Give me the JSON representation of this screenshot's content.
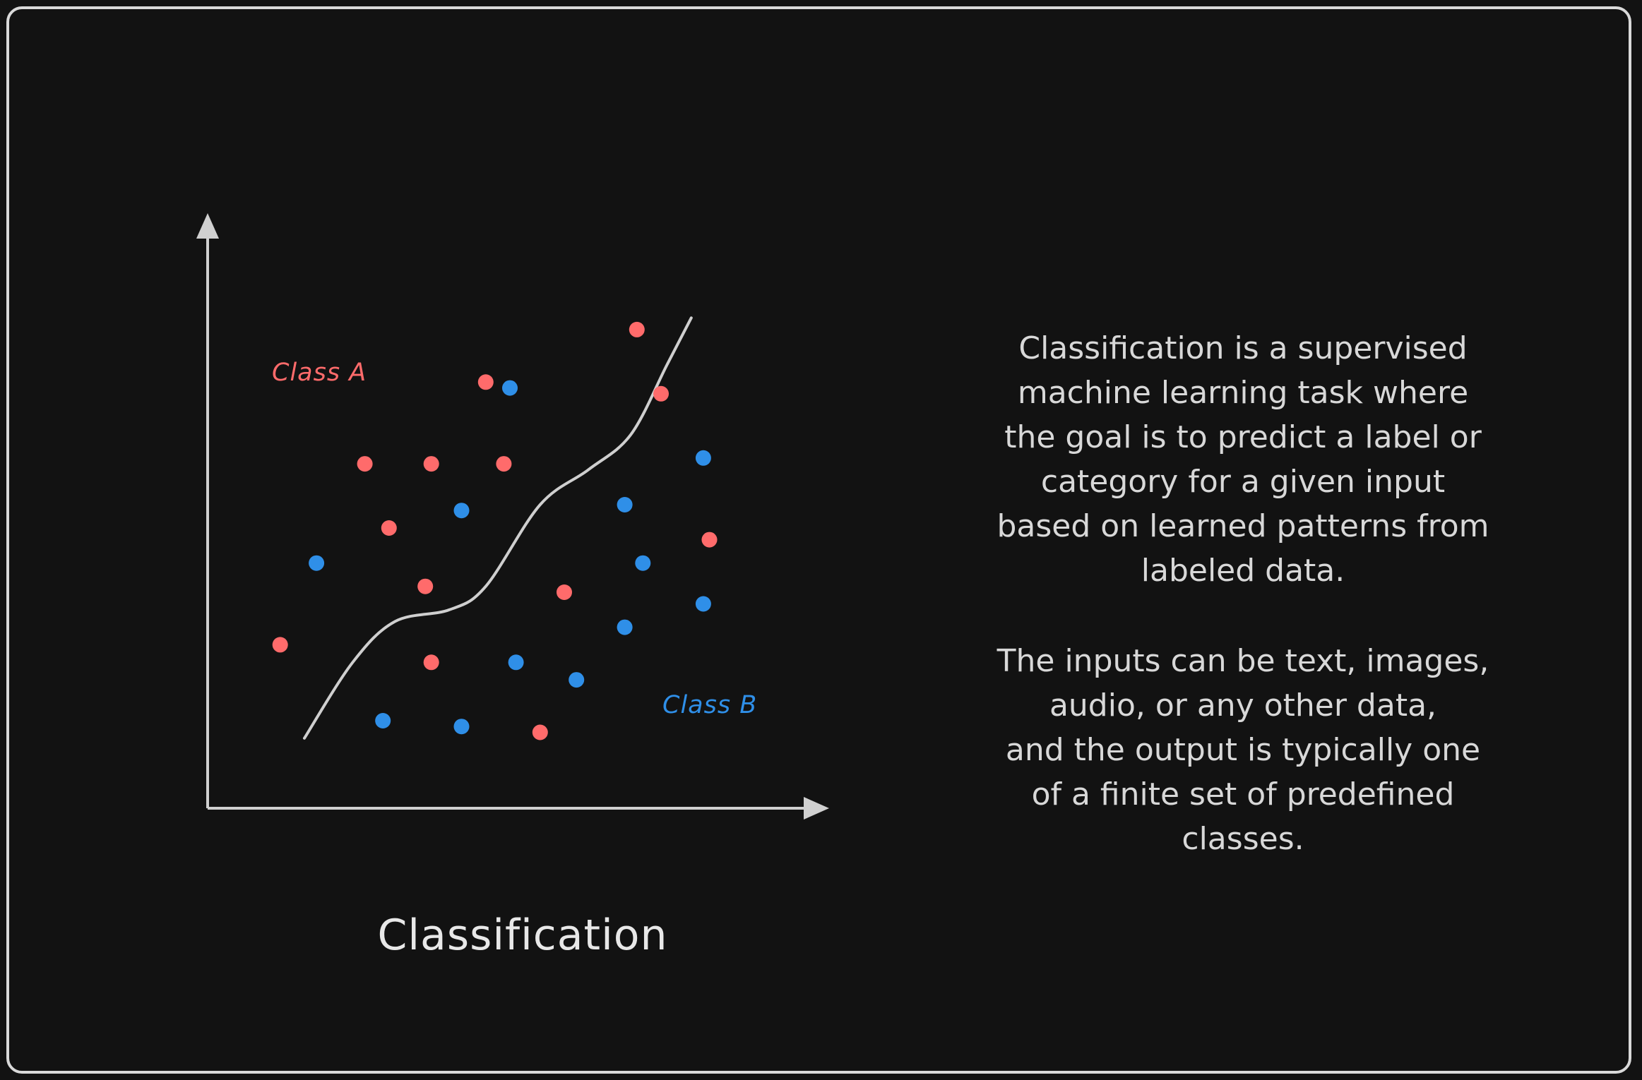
{
  "caption": "Classification",
  "class_labels": {
    "class_a": "Class A",
    "class_b": "Class B"
  },
  "description": {
    "paragraph_1": [
      "Classification is a supervised",
      "machine learning task where",
      "the goal is to predict a label or",
      "category for a given input",
      "based on learned patterns from",
      "labeled data."
    ],
    "paragraph_2": [
      "The inputs can be text, images,",
      "audio, or any other data,",
      "and the output is typically one",
      "of a finite set of predefined",
      "classes."
    ]
  },
  "colors": {
    "background": "#121212",
    "frame": "#d9d9d9",
    "axis": "#d0d0d0",
    "boundary": "#cfcfcf",
    "class_a": "#ff6b6b",
    "class_b": "#2f8fe8",
    "text": "#d8d8d8"
  },
  "chart_data": {
    "type": "scatter",
    "title": "",
    "xlabel": "",
    "ylabel": "",
    "grid": false,
    "series": [
      {
        "name": "Class A",
        "color": "#ff6b6b",
        "points": [
          [
            7.1,
            8.2
          ],
          [
            4.6,
            7.3
          ],
          [
            7.5,
            7.1
          ],
          [
            2.6,
            5.9
          ],
          [
            3.7,
            5.9
          ],
          [
            4.9,
            5.9
          ],
          [
            3.0,
            4.8
          ],
          [
            8.3,
            4.6
          ],
          [
            3.6,
            3.8
          ],
          [
            5.9,
            3.7
          ],
          [
            1.2,
            2.8
          ],
          [
            3.7,
            2.5
          ],
          [
            5.5,
            1.3
          ]
        ]
      },
      {
        "name": "Class B",
        "color": "#2f8fe8",
        "points": [
          [
            5.0,
            7.2
          ],
          [
            8.2,
            6.0
          ],
          [
            4.2,
            5.1
          ],
          [
            6.9,
            5.2
          ],
          [
            1.8,
            4.2
          ],
          [
            7.2,
            4.2
          ],
          [
            8.2,
            3.5
          ],
          [
            6.9,
            3.1
          ],
          [
            5.1,
            2.5
          ],
          [
            6.1,
            2.2
          ],
          [
            2.9,
            1.5
          ],
          [
            4.2,
            1.4
          ]
        ]
      }
    ],
    "boundary": [
      [
        1.6,
        1.2
      ],
      [
        2.4,
        2.5
      ],
      [
        3.1,
        3.2
      ],
      [
        4.0,
        3.4
      ],
      [
        4.6,
        3.8
      ],
      [
        5.5,
        5.2
      ],
      [
        6.3,
        5.8
      ],
      [
        7.0,
        6.4
      ],
      [
        7.6,
        7.6
      ],
      [
        8.0,
        8.4
      ]
    ],
    "xlim": [
      0,
      10
    ],
    "ylim": [
      0,
      10
    ]
  }
}
